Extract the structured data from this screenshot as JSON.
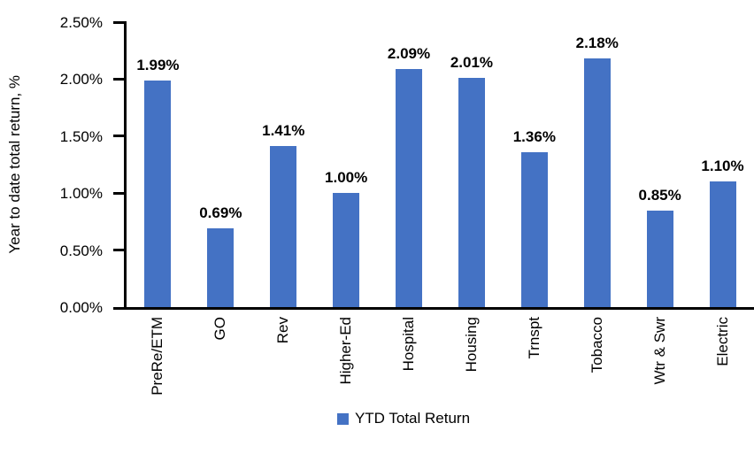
{
  "chart_data": {
    "type": "bar",
    "title": "",
    "xlabel": "",
    "ylabel": "Year to date total return, %",
    "categories": [
      "PreRe/ETM",
      "GO",
      "Rev",
      "Higher-Ed",
      "Hospital",
      "Housing",
      "Trnspt",
      "Tobacco",
      "Wtr & Swr",
      "Electric"
    ],
    "series": [
      {
        "name": "YTD Total Return",
        "values": [
          1.99,
          0.69,
          1.41,
          1.0,
          2.09,
          2.01,
          1.36,
          2.18,
          0.85,
          1.1
        ]
      }
    ],
    "data_labels": [
      "1.99%",
      "0.69%",
      "1.41%",
      "1.00%",
      "2.09%",
      "2.01%",
      "1.36%",
      "2.18%",
      "0.85%",
      "1.10%"
    ],
    "y_ticks": [
      "2.50%",
      "2.00%",
      "1.50%",
      "1.00%",
      "0.50%",
      "0.00%"
    ],
    "ylim": [
      0,
      2.5
    ],
    "grid": false,
    "legend_position": "bottom",
    "bar_color": "#4472C4",
    "axis_color": "#000000",
    "label_color": "#000000"
  },
  "legend": {
    "label": "YTD Total Return"
  }
}
